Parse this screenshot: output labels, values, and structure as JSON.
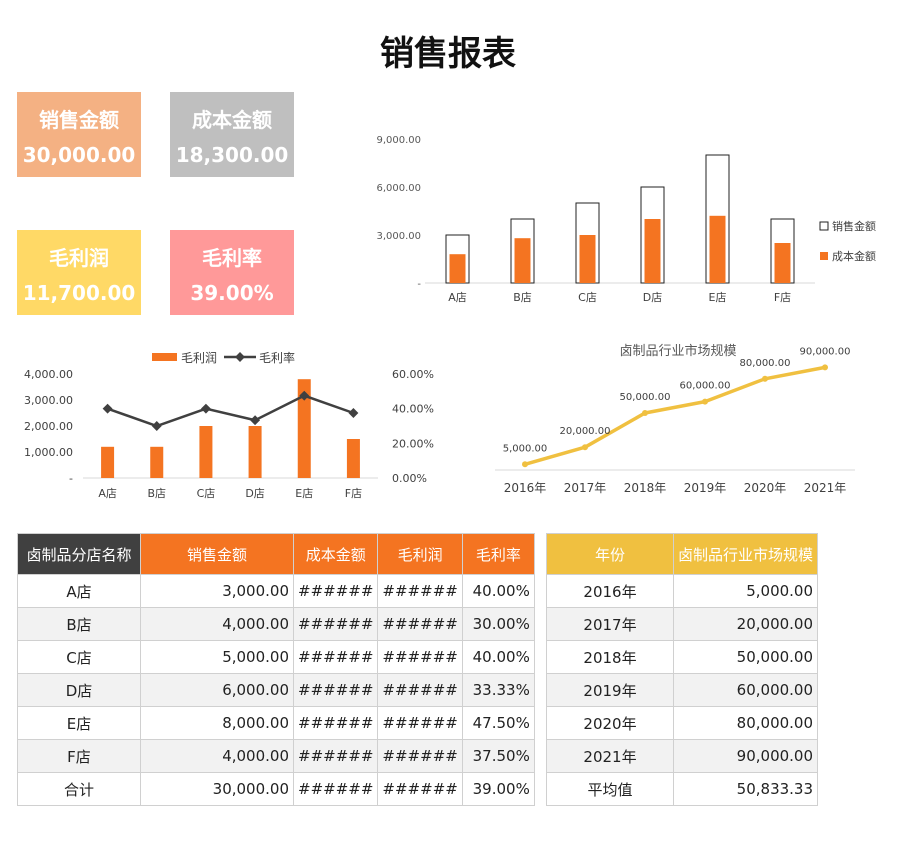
{
  "title": "销售报表",
  "colors": {
    "orange": "#f47421",
    "gold": "#f0c040",
    "dark": "#404040"
  },
  "kpis": [
    {
      "label": "销售金额",
      "value": "30,000.00"
    },
    {
      "label": "成本金额",
      "value": "18,300.00"
    },
    {
      "label": "毛利润",
      "value": "11,700.00"
    },
    {
      "label": "毛利率",
      "value": "39.00%"
    }
  ],
  "chart_data": [
    {
      "type": "bar",
      "title": "",
      "categories": [
        "A店",
        "B店",
        "C店",
        "D店",
        "E店",
        "F店"
      ],
      "series": [
        {
          "name": "销售金额",
          "values": [
            3000,
            4000,
            5000,
            6000,
            8000,
            4000
          ]
        },
        {
          "name": "成本金额",
          "values": [
            1800,
            2800,
            3000,
            4000,
            4200,
            2500
          ]
        }
      ],
      "yticks": [
        "-",
        "3,000.00",
        "6,000.00",
        "9,000.00"
      ],
      "ylim": [
        0,
        9000
      ],
      "legend": "right"
    },
    {
      "type": "bar",
      "title": "",
      "categories": [
        "A店",
        "B店",
        "C店",
        "D店",
        "E店",
        "F店"
      ],
      "series": [
        {
          "name": "毛利润",
          "type": "bar",
          "values": [
            1200,
            1200,
            2000,
            2000,
            3800,
            1500
          ]
        },
        {
          "name": "毛利率",
          "type": "line",
          "axis": "right",
          "values": [
            0.4,
            0.3,
            0.4,
            0.3333,
            0.475,
            0.375
          ]
        }
      ],
      "yticks_left": [
        "-",
        "1,000.00",
        "2,000.00",
        "3,000.00",
        "4,000.00"
      ],
      "ylim_left": [
        0,
        4000
      ],
      "yticks_right": [
        "0.00%",
        "20.00%",
        "40.00%",
        "60.00%"
      ],
      "ylim_right": [
        0,
        0.6
      ],
      "legend": "top"
    },
    {
      "type": "line",
      "title": "卤制品行业市场规模",
      "categories": [
        "2016年",
        "2017年",
        "2018年",
        "2019年",
        "2020年",
        "2021年"
      ],
      "values": [
        5000,
        20000,
        50000,
        60000,
        80000,
        90000
      ],
      "labels": [
        "5,000.00",
        "20,000.00",
        "50,000.00",
        "60,000.00",
        "80,000.00",
        "90,000.00"
      ],
      "ylim": [
        0,
        100000
      ]
    }
  ],
  "table1": {
    "headers": [
      "卤制品分店名称",
      "销售金额",
      "成本金额",
      "毛利润",
      "毛利率"
    ],
    "rows": [
      [
        "A店",
        "3,000.00",
        "######",
        "######",
        "40.00%"
      ],
      [
        "B店",
        "4,000.00",
        "######",
        "######",
        "30.00%"
      ],
      [
        "C店",
        "5,000.00",
        "######",
        "######",
        "40.00%"
      ],
      [
        "D店",
        "6,000.00",
        "######",
        "######",
        "33.33%"
      ],
      [
        "E店",
        "8,000.00",
        "######",
        "######",
        "47.50%"
      ],
      [
        "F店",
        "4,000.00",
        "######",
        "######",
        "37.50%"
      ],
      [
        "合计",
        "30,000.00",
        "######",
        "######",
        "39.00%"
      ]
    ]
  },
  "table2": {
    "headers": [
      "年份",
      "卤制品行业市场规模"
    ],
    "rows": [
      [
        "2016年",
        "5,000.00"
      ],
      [
        "2017年",
        "20,000.00"
      ],
      [
        "2018年",
        "50,000.00"
      ],
      [
        "2019年",
        "60,000.00"
      ],
      [
        "2020年",
        "80,000.00"
      ],
      [
        "2021年",
        "90,000.00"
      ],
      [
        "平均值",
        "50,833.33"
      ]
    ]
  }
}
